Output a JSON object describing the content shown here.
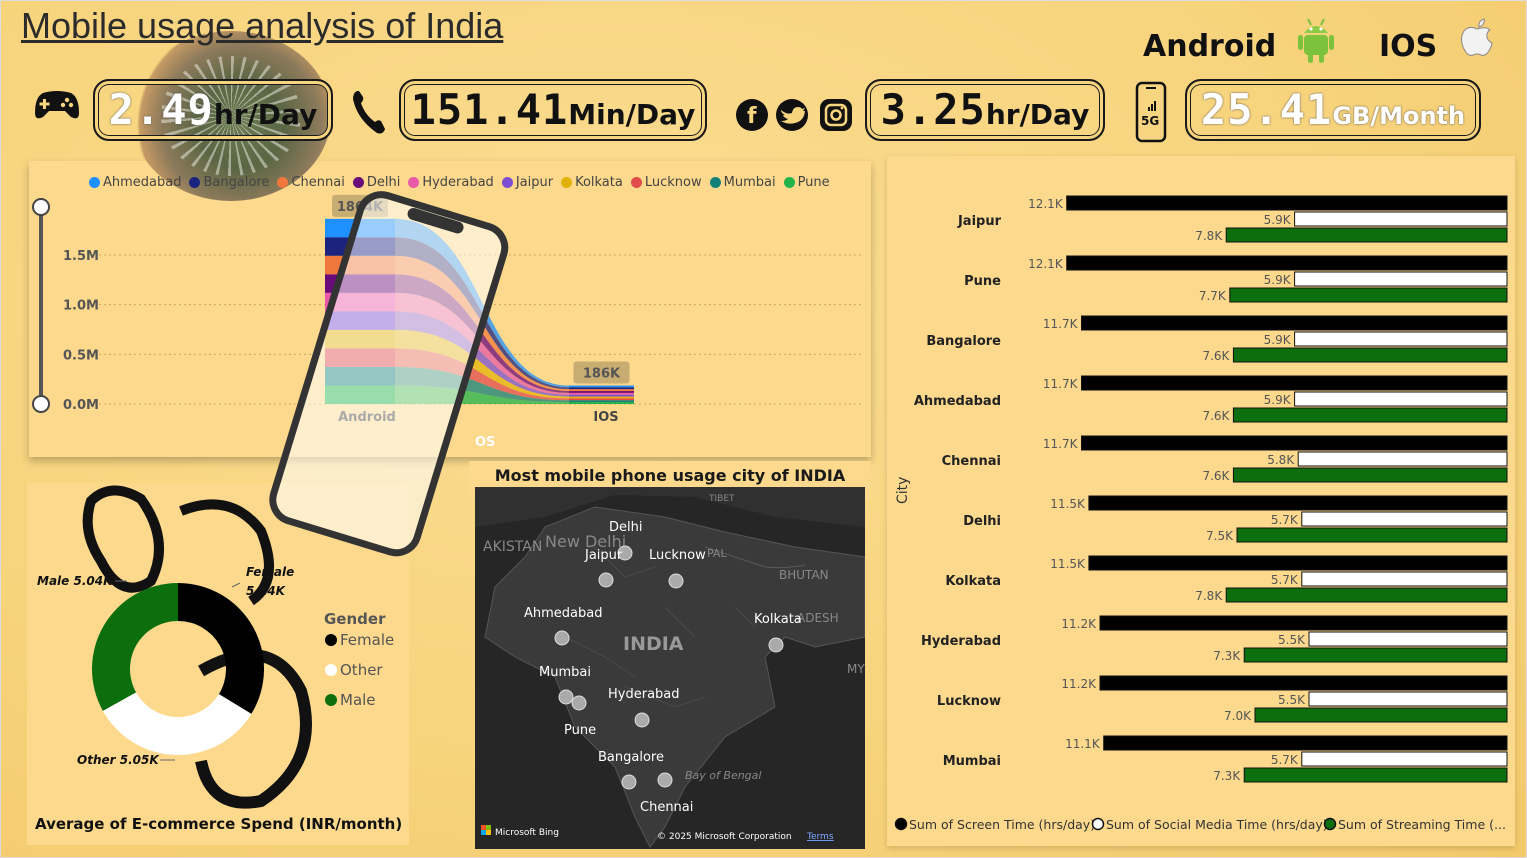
{
  "title": "Mobile usage analysis of India",
  "header": {
    "android_label": "Android",
    "ios_label": "IOS"
  },
  "kpis": [
    {
      "value": "2.49",
      "unit": "hr/Day",
      "icon": "gamepad-icon"
    },
    {
      "value": "151.41",
      "unit": "Min/Day",
      "icon": "phone-icon"
    },
    {
      "value": "3.25",
      "unit": "hr/Day",
      "icon": "social-icons"
    },
    {
      "value": "25.41",
      "unit": "GB/Month",
      "icon": "5g-phone-icon"
    }
  ],
  "colors": {
    "Ahmedabad": "#1e90ff",
    "Bangalore": "#1a237e",
    "Chennai": "#f0783c",
    "Delhi": "#6a0a7a",
    "Hyderabad": "#e85aa8",
    "Jaipur": "#7b4fcf",
    "Kolkata": "#e3b20a",
    "Lucknow": "#e14b4b",
    "Mumbai": "#13807a",
    "Pune": "#1fb34a",
    "screen": "#000000",
    "social": "#ffffff",
    "streaming": "#0c6e0c"
  },
  "chart_data": [
    {
      "type": "area",
      "title": "",
      "xlabel": "OS",
      "categories": [
        "Android",
        "IOS"
      ],
      "legend": [
        "Ahmedabad",
        "Bangalore",
        "Chennai",
        "Delhi",
        "Hyderabad",
        "Jaipur",
        "Kolkata",
        "Lucknow",
        "Mumbai",
        "Pune"
      ],
      "yticks": [
        "1.5M",
        "1.0M",
        "0.5M",
        "0.0M"
      ],
      "total_labels": [
        "1864K",
        "186K"
      ],
      "totals": [
        1864000,
        186000
      ],
      "ylim": [
        0,
        2000000
      ]
    },
    {
      "type": "bar",
      "orientation": "horizontal",
      "ylabel": "City",
      "categories": [
        "Jaipur",
        "Pune",
        "Bangalore",
        "Ahmedabad",
        "Chennai",
        "Delhi",
        "Kolkata",
        "Hyderabad",
        "Lucknow",
        "Mumbai"
      ],
      "series": [
        {
          "name": "Sum of Screen Time (hrs/day)",
          "values": [
            12.1,
            12.1,
            11.7,
            11.7,
            11.7,
            11.5,
            11.5,
            11.2,
            11.2,
            11.1
          ],
          "labels": [
            "12.1K",
            "12.1K",
            "11.7K",
            "11.7K",
            "11.7K",
            "11.5K",
            "11.5K",
            "11.2K",
            "11.2K",
            "11.1K"
          ]
        },
        {
          "name": "Sum of Social Media Time (hrs/day)",
          "values": [
            5.9,
            5.9,
            5.9,
            5.9,
            5.8,
            5.7,
            5.7,
            5.5,
            5.5,
            5.7
          ],
          "labels": [
            "5.9K",
            "5.9K",
            "5.9K",
            "5.9K",
            "5.8K",
            "5.7K",
            "5.7K",
            "5.5K",
            "5.5K",
            "5.7K"
          ]
        },
        {
          "name": "Sum of Streaming Time (...",
          "values": [
            7.8,
            7.7,
            7.6,
            7.6,
            7.6,
            7.5,
            7.8,
            7.3,
            7.0,
            7.3
          ],
          "labels": [
            "7.8K",
            "7.7K",
            "7.6K",
            "7.6K",
            "7.6K",
            "7.5K",
            "7.8K",
            "7.3K",
            "7.0K",
            "7.3K"
          ]
        }
      ],
      "legend": [
        "Sum of Screen Time (hrs/day)",
        "Sum of Social Media Time (hrs/day)",
        "Sum of Streaming Time (..."
      ]
    },
    {
      "type": "pie",
      "title": "Average of E-commerce Spend (INR/month)",
      "legend_title": "Gender",
      "slices": [
        {
          "name": "Female",
          "value": 5.14,
          "label_line1": "Female",
          "label_line2": "5.14K",
          "color": "#000000"
        },
        {
          "name": "Other",
          "value": 5.05,
          "label": "Other 5.05K",
          "color": "#ffffff"
        },
        {
          "name": "Male",
          "value": 5.04,
          "label": "Male 5.04K",
          "color": "#0c6e0c"
        }
      ]
    }
  ],
  "map": {
    "title": "Most mobile phone usage city of INDIA",
    "cities": [
      "Delhi",
      "Jaipur",
      "Lucknow",
      "Ahmedabad",
      "Kolkata",
      "Mumbai",
      "Hyderabad",
      "Pune",
      "Bangalore",
      "Chennai"
    ],
    "region_labels": [
      "INDIA",
      "New Delhi",
      "AKISTAN",
      "BHUTAN",
      "TIBET",
      "Bay of Bengal",
      "ADESH",
      "MY",
      "PAL"
    ],
    "copyright": "© 2025 Microsoft Corporation",
    "terms": "Terms",
    "bing": "Microsoft Bing"
  }
}
